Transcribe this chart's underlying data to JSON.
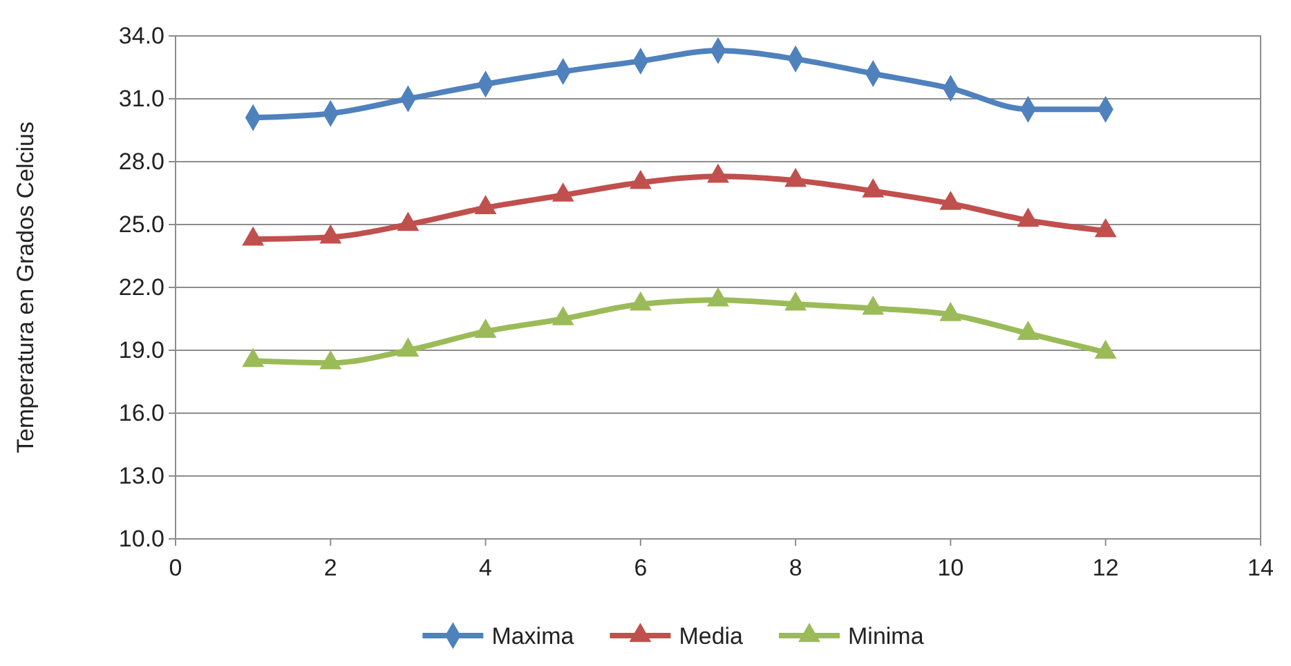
{
  "chart_data": {
    "type": "line",
    "ylabel": "Temperatura en Grados Celcius",
    "x": [
      1,
      2,
      3,
      4,
      5,
      6,
      7,
      8,
      9,
      10,
      11,
      12
    ],
    "series": [
      {
        "name": "Maxima",
        "color": "#4f81bd",
        "marker": "diamond",
        "values": [
          30.1,
          30.3,
          31.0,
          31.7,
          32.3,
          32.8,
          33.3,
          32.9,
          32.2,
          31.5,
          30.5,
          30.5
        ]
      },
      {
        "name": "Media",
        "color": "#c0504d",
        "marker": "triangle",
        "values": [
          24.3,
          24.4,
          25.0,
          25.8,
          26.4,
          27.0,
          27.3,
          27.1,
          26.6,
          26.0,
          25.2,
          24.7
        ]
      },
      {
        "name": "Minima",
        "color": "#9bbb59",
        "marker": "triangle",
        "values": [
          18.5,
          18.4,
          19.0,
          19.9,
          20.5,
          21.2,
          21.4,
          21.2,
          21.0,
          20.7,
          19.8,
          18.9
        ]
      }
    ],
    "xlim": [
      0,
      14
    ],
    "xticks": [
      0,
      2,
      4,
      6,
      8,
      10,
      12,
      14
    ],
    "ylim": [
      10,
      34
    ],
    "yticks": [
      {
        "value": 10,
        "label": "10.0"
      },
      {
        "value": 13,
        "label": "13.0"
      },
      {
        "value": 16,
        "label": "16.0"
      },
      {
        "value": 19,
        "label": "19.0"
      },
      {
        "value": 22,
        "label": "22.0"
      },
      {
        "value": 25,
        "label": "25.0"
      },
      {
        "value": 28,
        "label": "28.0"
      },
      {
        "value": 31,
        "label": "31.0"
      },
      {
        "value": 34,
        "label": "34.0"
      }
    ],
    "grid": "y",
    "legend": "bottom",
    "line_style": "solid"
  }
}
